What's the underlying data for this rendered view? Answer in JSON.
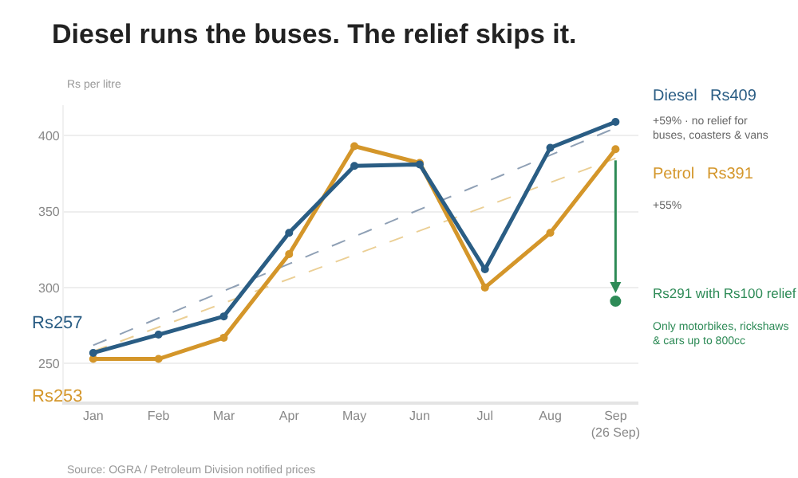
{
  "chart_data": {
    "type": "line",
    "title": "Diesel runs the buses. The relief skips it.",
    "ylabel": "Rs per litre",
    "categories": [
      "Jan",
      "Feb",
      "Mar",
      "Apr",
      "May",
      "Jun",
      "Jul",
      "Aug",
      "Sep\n(26 Sep)"
    ],
    "series": [
      {
        "name": "Diesel",
        "color": "#2a5d84",
        "values": [
          257,
          269,
          281,
          336,
          380,
          381,
          312,
          392,
          409
        ]
      },
      {
        "name": "Petrol",
        "color": "#d4962a",
        "values": [
          253,
          253,
          267,
          322,
          393,
          382,
          300,
          336,
          391
        ]
      },
      {
        "type": "scatter",
        "color": "#2e8b57",
        "values": [
          null,
          null,
          null,
          null,
          null,
          null,
          null,
          null,
          291
        ]
      },
      {
        "color": "#8fa0b5",
        "line_style": "dashed",
        "marker": "none",
        "x": [
          "Jan",
          "Sep\n(26 Sep)"
        ],
        "values": [
          262,
          405
        ]
      },
      {
        "color": "#ebcf95",
        "line_style": "dashed",
        "marker": "none",
        "x": [
          "Jan",
          "Sep\n(26 Sep)"
        ],
        "values": [
          258,
          385
        ]
      }
    ],
    "ylim": [
      225,
      420
    ],
    "yticks": [
      250,
      300,
      350,
      400
    ],
    "grid": "y",
    "legend": false,
    "marker": "circle",
    "line_style": "solid",
    "annotations": [
      {
        "text": "Rs257",
        "x": "Jan",
        "y": 257
      },
      {
        "text": "Rs253",
        "x": "Jan",
        "y": 253
      },
      {
        "text": "Rs291 with Rs100 relief",
        "x": "Sep\n(26 Sep)",
        "y": 291
      },
      "Rs409",
      "+59% · no relief for\nbuses, coasters & vans",
      "Rs391",
      "+55%",
      "Only motorbikes, rickshaws\n& cars up to 800cc",
      "Source: OGRA / Petroleum Division notified prices"
    ]
  }
}
